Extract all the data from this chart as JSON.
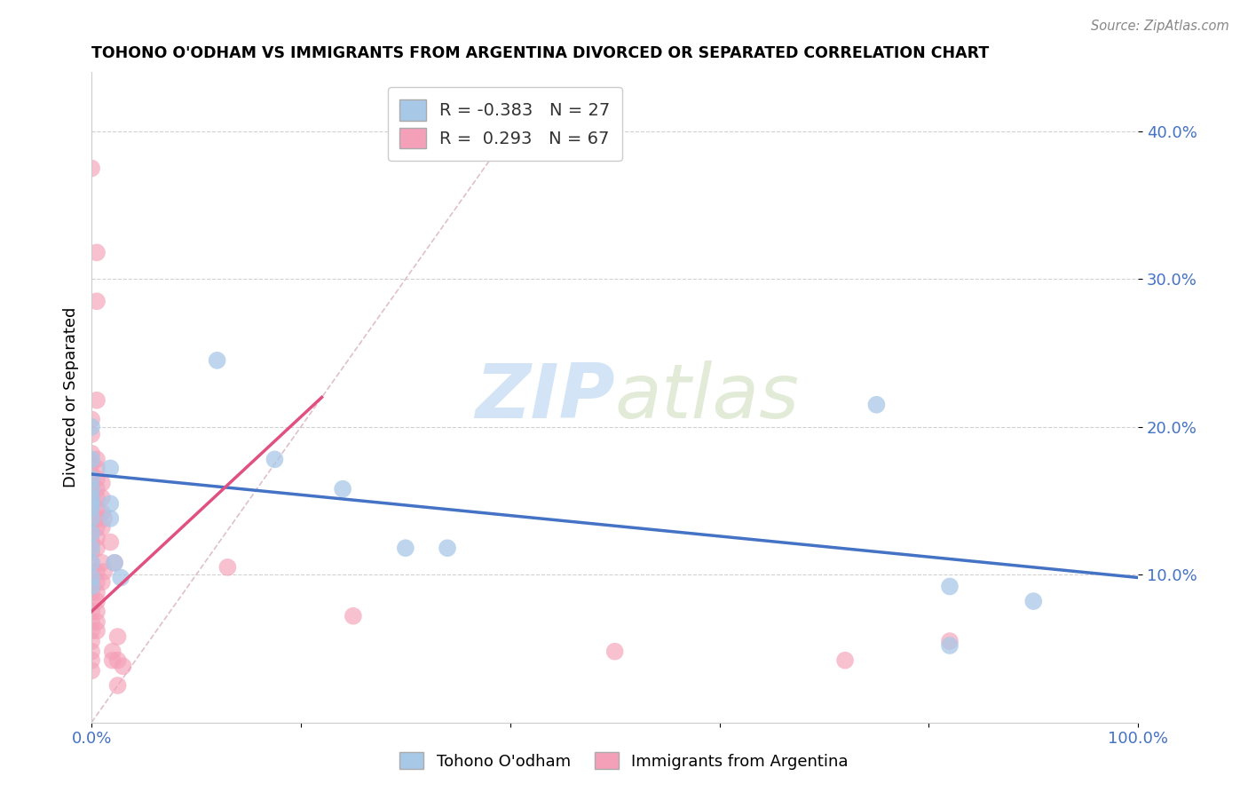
{
  "title": "TOHONO O'ODHAM VS IMMIGRANTS FROM ARGENTINA DIVORCED OR SEPARATED CORRELATION CHART",
  "source": "Source: ZipAtlas.com",
  "ylabel": "Divorced or Separated",
  "legend_label1": "Tohono O'odham",
  "legend_label2": "Immigrants from Argentina",
  "r1": "-0.383",
  "n1": "27",
  "r2": "0.293",
  "n2": "67",
  "color_blue": "#a8c8e8",
  "color_pink": "#f4a0b8",
  "line_blue": "#4472c4",
  "line_pink": "#e05080",
  "line_diag_color": "#d8b0c0",
  "yticks": [
    0.1,
    0.2,
    0.3,
    0.4
  ],
  "ytick_labels": [
    "10.0%",
    "20.0%",
    "30.0%",
    "40.0%"
  ],
  "xlim": [
    0.0,
    1.0
  ],
  "ylim": [
    0.0,
    0.44
  ],
  "blue_points": [
    [
      0.0,
      0.165
    ],
    [
      0.0,
      0.2
    ],
    [
      0.0,
      0.178
    ],
    [
      0.0,
      0.158
    ],
    [
      0.0,
      0.148
    ],
    [
      0.0,
      0.152
    ],
    [
      0.0,
      0.145
    ],
    [
      0.0,
      0.138
    ],
    [
      0.0,
      0.128
    ],
    [
      0.0,
      0.118
    ],
    [
      0.0,
      0.108
    ],
    [
      0.0,
      0.098
    ],
    [
      0.0,
      0.092
    ],
    [
      0.018,
      0.172
    ],
    [
      0.018,
      0.148
    ],
    [
      0.018,
      0.138
    ],
    [
      0.022,
      0.108
    ],
    [
      0.028,
      0.098
    ],
    [
      0.12,
      0.245
    ],
    [
      0.175,
      0.178
    ],
    [
      0.24,
      0.158
    ],
    [
      0.3,
      0.118
    ],
    [
      0.34,
      0.118
    ],
    [
      0.75,
      0.215
    ],
    [
      0.82,
      0.092
    ],
    [
      0.9,
      0.082
    ],
    [
      0.82,
      0.052
    ]
  ],
  "pink_points": [
    [
      0.0,
      0.375
    ],
    [
      0.005,
      0.318
    ],
    [
      0.005,
      0.285
    ],
    [
      0.005,
      0.218
    ],
    [
      0.0,
      0.205
    ],
    [
      0.0,
      0.195
    ],
    [
      0.0,
      0.182
    ],
    [
      0.0,
      0.175
    ],
    [
      0.0,
      0.168
    ],
    [
      0.0,
      0.162
    ],
    [
      0.0,
      0.155
    ],
    [
      0.0,
      0.148
    ],
    [
      0.0,
      0.142
    ],
    [
      0.0,
      0.135
    ],
    [
      0.0,
      0.128
    ],
    [
      0.0,
      0.122
    ],
    [
      0.0,
      0.115
    ],
    [
      0.0,
      0.108
    ],
    [
      0.0,
      0.102
    ],
    [
      0.0,
      0.095
    ],
    [
      0.0,
      0.088
    ],
    [
      0.0,
      0.082
    ],
    [
      0.0,
      0.075
    ],
    [
      0.0,
      0.068
    ],
    [
      0.0,
      0.062
    ],
    [
      0.0,
      0.055
    ],
    [
      0.0,
      0.048
    ],
    [
      0.0,
      0.042
    ],
    [
      0.0,
      0.035
    ],
    [
      0.005,
      0.178
    ],
    [
      0.005,
      0.172
    ],
    [
      0.005,
      0.165
    ],
    [
      0.005,
      0.158
    ],
    [
      0.005,
      0.152
    ],
    [
      0.005,
      0.145
    ],
    [
      0.005,
      0.138
    ],
    [
      0.005,
      0.132
    ],
    [
      0.005,
      0.125
    ],
    [
      0.005,
      0.118
    ],
    [
      0.005,
      0.102
    ],
    [
      0.005,
      0.095
    ],
    [
      0.005,
      0.088
    ],
    [
      0.005,
      0.082
    ],
    [
      0.005,
      0.075
    ],
    [
      0.005,
      0.068
    ],
    [
      0.005,
      0.062
    ],
    [
      0.01,
      0.162
    ],
    [
      0.01,
      0.152
    ],
    [
      0.01,
      0.142
    ],
    [
      0.01,
      0.132
    ],
    [
      0.01,
      0.108
    ],
    [
      0.01,
      0.095
    ],
    [
      0.012,
      0.138
    ],
    [
      0.012,
      0.102
    ],
    [
      0.018,
      0.122
    ],
    [
      0.022,
      0.108
    ],
    [
      0.02,
      0.048
    ],
    [
      0.02,
      0.042
    ],
    [
      0.025,
      0.058
    ],
    [
      0.025,
      0.042
    ],
    [
      0.03,
      0.038
    ],
    [
      0.025,
      0.025
    ],
    [
      0.13,
      0.105
    ],
    [
      0.25,
      0.072
    ],
    [
      0.5,
      0.048
    ],
    [
      0.82,
      0.055
    ],
    [
      0.72,
      0.042
    ]
  ],
  "blue_line_x": [
    0.0,
    1.0
  ],
  "blue_line_y": [
    0.168,
    0.098
  ],
  "pink_line_x": [
    0.0,
    0.22
  ],
  "pink_line_y": [
    0.075,
    0.22
  ],
  "diag_line_x": [
    0.0,
    0.42
  ],
  "diag_line_y": [
    0.0,
    0.42
  ]
}
